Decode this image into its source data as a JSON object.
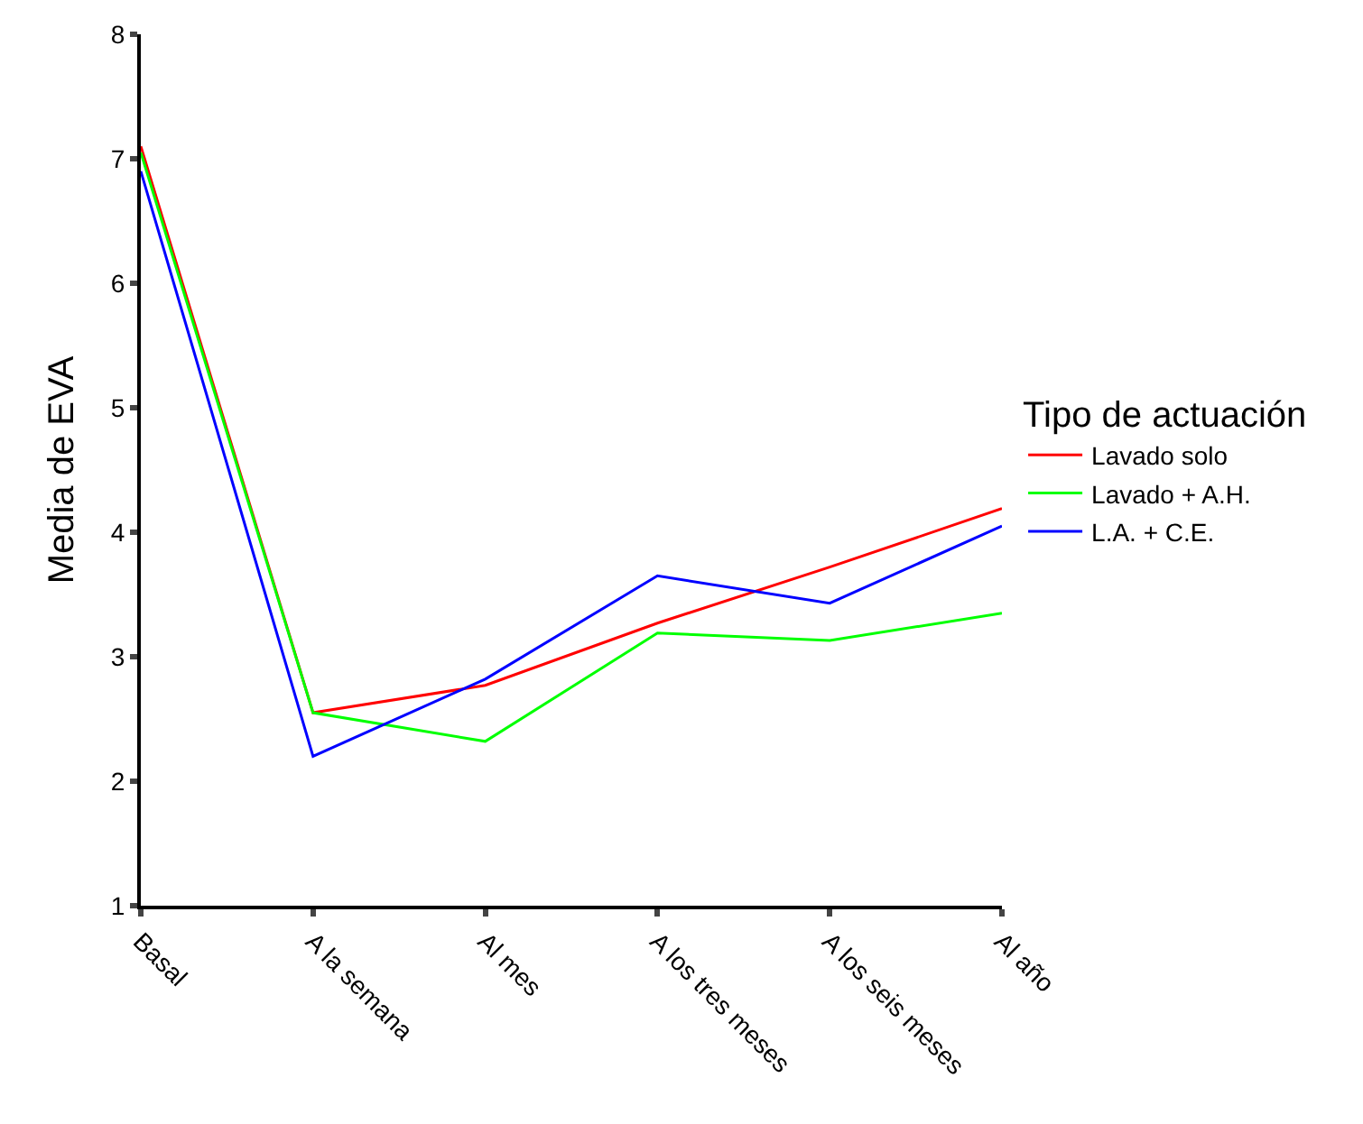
{
  "chart_data": {
    "type": "line",
    "ylabel": "Media de EVA",
    "legend_title": "Tipo de actuación",
    "categories": [
      "Basal",
      "A la semana",
      "Al mes",
      "A los tres meses",
      "A los seis meses",
      "Al año"
    ],
    "series": [
      {
        "name": "Lavado solo",
        "color": "#ff0000",
        "values": [
          7.1,
          2.55,
          2.77,
          3.27,
          3.72,
          4.19
        ]
      },
      {
        "name": "Lavado + A.H.",
        "color": "#00ff00",
        "values": [
          7.05,
          2.55,
          2.32,
          3.19,
          3.13,
          3.35
        ]
      },
      {
        "name": "L.A. + C.E.",
        "color": "#0000ff",
        "values": [
          6.9,
          2.2,
          2.82,
          3.65,
          3.43,
          4.05
        ]
      }
    ],
    "ylim": [
      1,
      8
    ],
    "yticks": [
      1,
      2,
      3,
      4,
      5,
      6,
      7,
      8
    ],
    "legend": "right",
    "marker": "none",
    "line_style": "solid"
  }
}
